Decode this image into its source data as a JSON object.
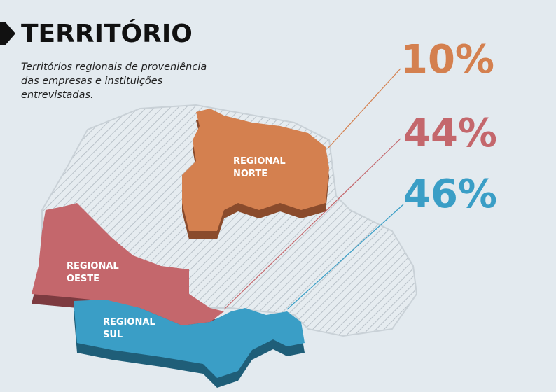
{
  "header": {
    "title": "TERRITÓRIO",
    "subtitle_lines": [
      "Territórios regionais de proveniência",
      "das empresas e instituições",
      "entrevistadas."
    ]
  },
  "regions": [
    {
      "name_lines": [
        "REGIONAL",
        "NORTE"
      ],
      "percent": "10%"
    },
    {
      "name_lines": [
        "REGIONAL",
        "OESTE"
      ],
      "percent": "44%"
    },
    {
      "name_lines": [
        "REGIONAL",
        "SUL"
      ],
      "percent": "46%"
    }
  ]
}
